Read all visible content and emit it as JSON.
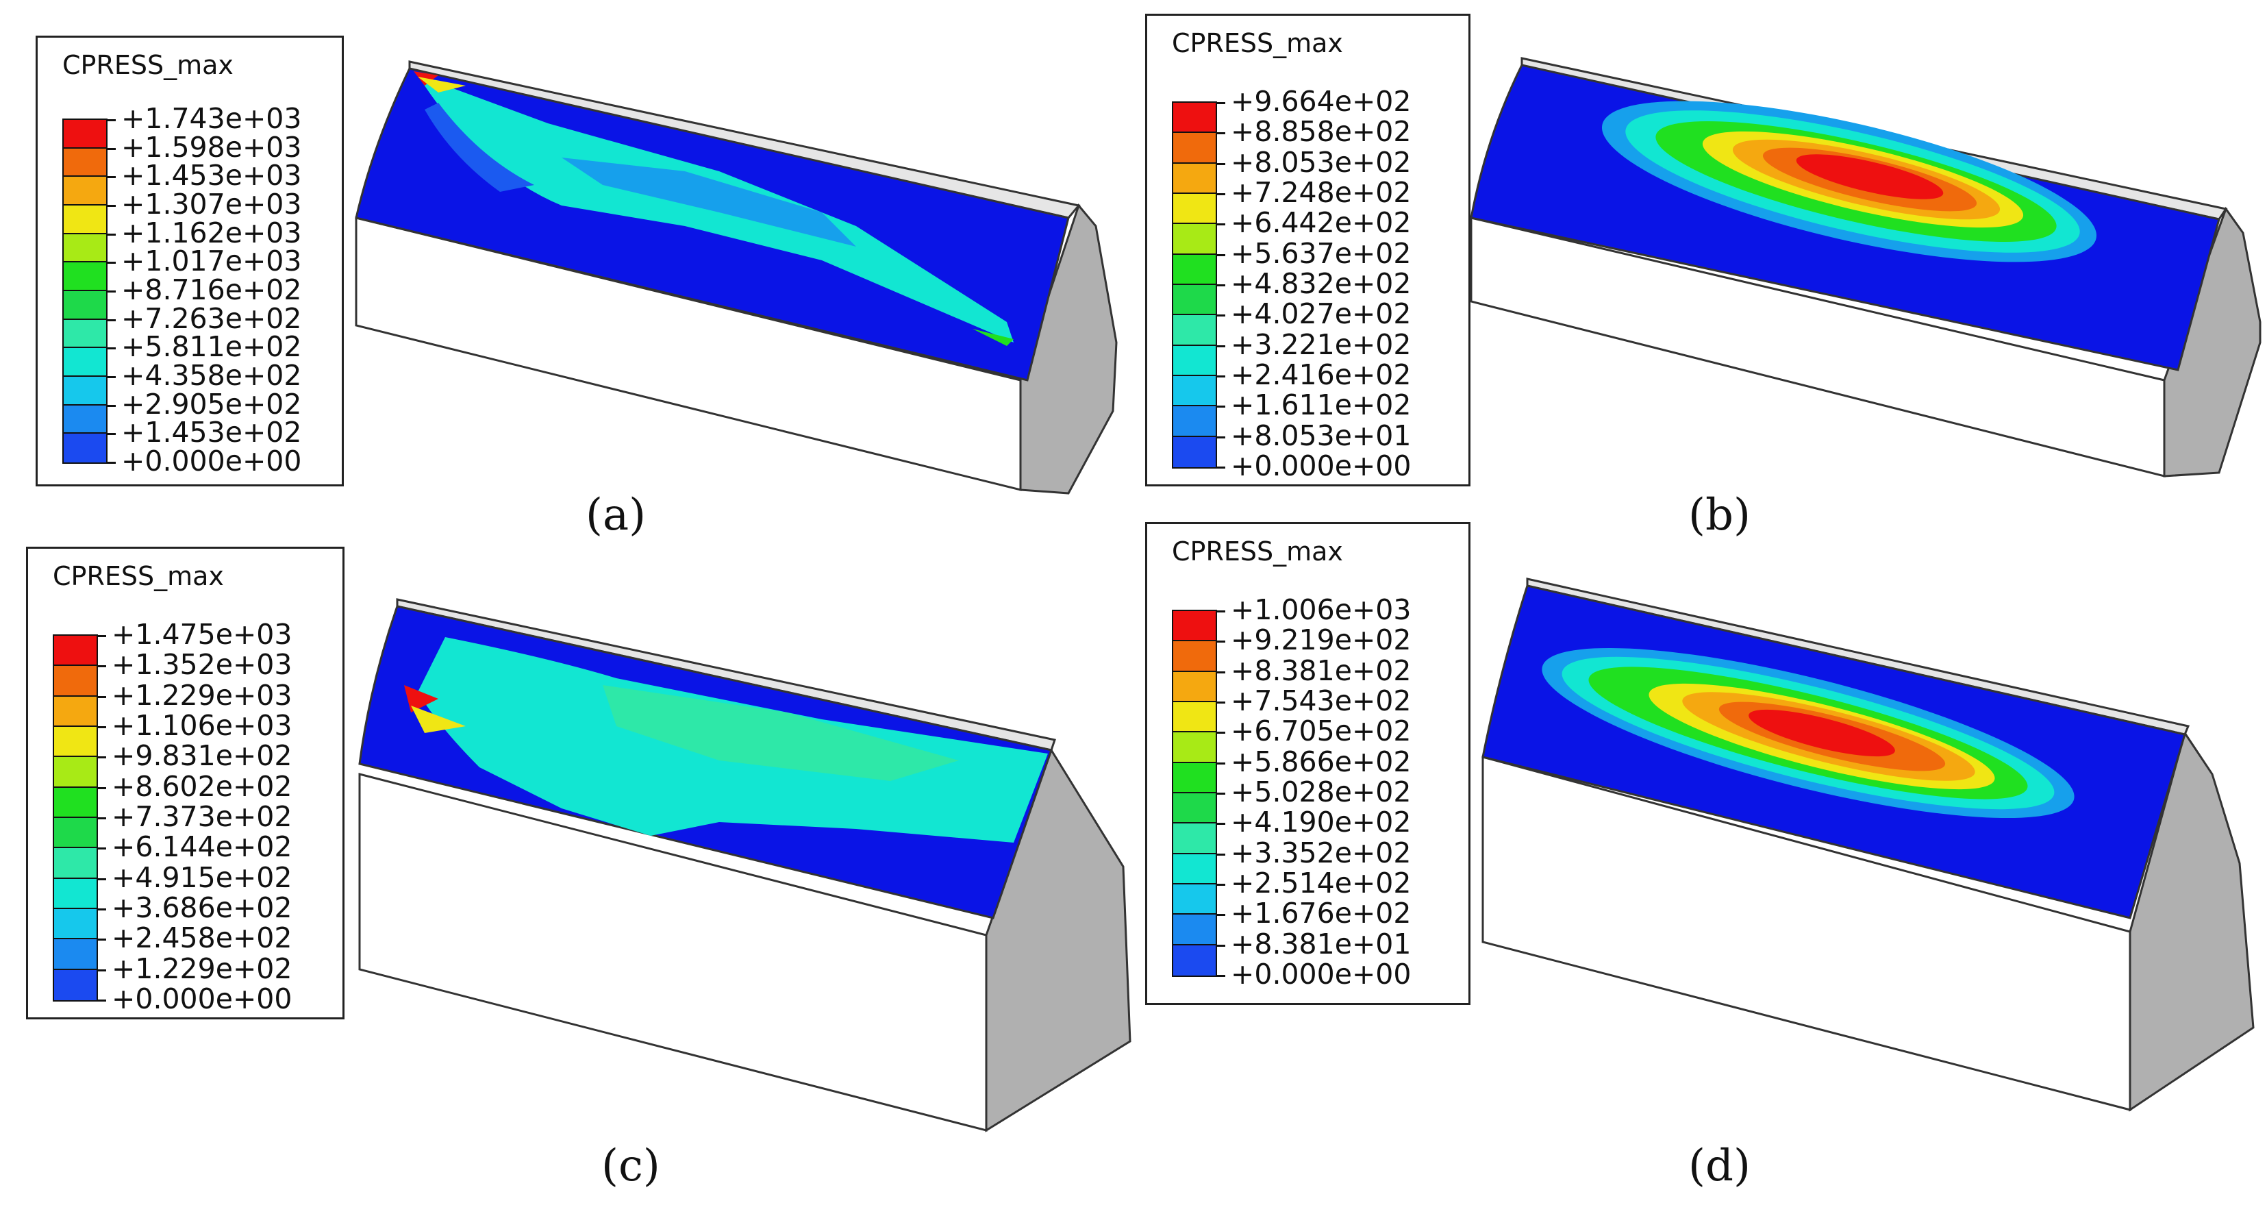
{
  "colors": {
    "blue": "#0a14e6",
    "blue_mid": "#1b5af0",
    "light_blue": "#16a0ec",
    "cyan": "#12e6d2",
    "cyan_green": "#2ee8a8",
    "green": "#1ed94a",
    "green2": "#20e020",
    "yellow_green": "#a8ea16",
    "yellow": "#f0e614",
    "orange": "#f5a810",
    "orange_red": "#f06a0c",
    "red": "#ee1010",
    "grey_face": "#b8b8b8",
    "white_face": "#ffffff"
  },
  "panels": [
    {
      "caption": "(a)",
      "legend_title": "CPRESS_max",
      "levels": [
        "+1.743e+03",
        "+1.598e+03",
        "+1.453e+03",
        "+1.307e+03",
        "+1.162e+03",
        "+1.017e+03",
        "+8.716e+02",
        "+7.263e+02",
        "+5.811e+02",
        "+4.358e+02",
        "+2.905e+02",
        "+1.453e+02",
        "+0.000e+00"
      ]
    },
    {
      "caption": "(b)",
      "legend_title": "CPRESS_max",
      "levels": [
        "+9.664e+02",
        "+8.858e+02",
        "+8.053e+02",
        "+7.248e+02",
        "+6.442e+02",
        "+5.637e+02",
        "+4.832e+02",
        "+4.027e+02",
        "+3.221e+02",
        "+2.416e+02",
        "+1.611e+02",
        "+8.053e+01",
        "+0.000e+00"
      ]
    },
    {
      "caption": "(c)",
      "legend_title": "CPRESS_max",
      "levels": [
        "+1.475e+03",
        "+1.352e+03",
        "+1.229e+03",
        "+1.106e+03",
        "+9.831e+02",
        "+8.602e+02",
        "+7.373e+02",
        "+6.144e+02",
        "+4.915e+02",
        "+3.686e+02",
        "+2.458e+02",
        "+1.229e+02",
        "+0.000e+00"
      ]
    },
    {
      "caption": "(d)",
      "legend_title": "CPRESS_max",
      "levels": [
        "+1.006e+03",
        "+9.219e+02",
        "+8.381e+02",
        "+7.543e+02",
        "+6.705e+02",
        "+5.866e+02",
        "+5.028e+02",
        "+4.190e+02",
        "+3.352e+02",
        "+2.514e+02",
        "+1.676e+02",
        "+8.381e+01",
        "+0.000e+00"
      ]
    }
  ],
  "legend_colors": [
    "#ee1010",
    "#f06a0c",
    "#f5a810",
    "#f0e614",
    "#a8ea16",
    "#20e020",
    "#1ed94a",
    "#2ee8a8",
    "#12e6d2",
    "#16c8ec",
    "#1b8af0",
    "#1b4af0",
    "#0a14e6"
  ]
}
